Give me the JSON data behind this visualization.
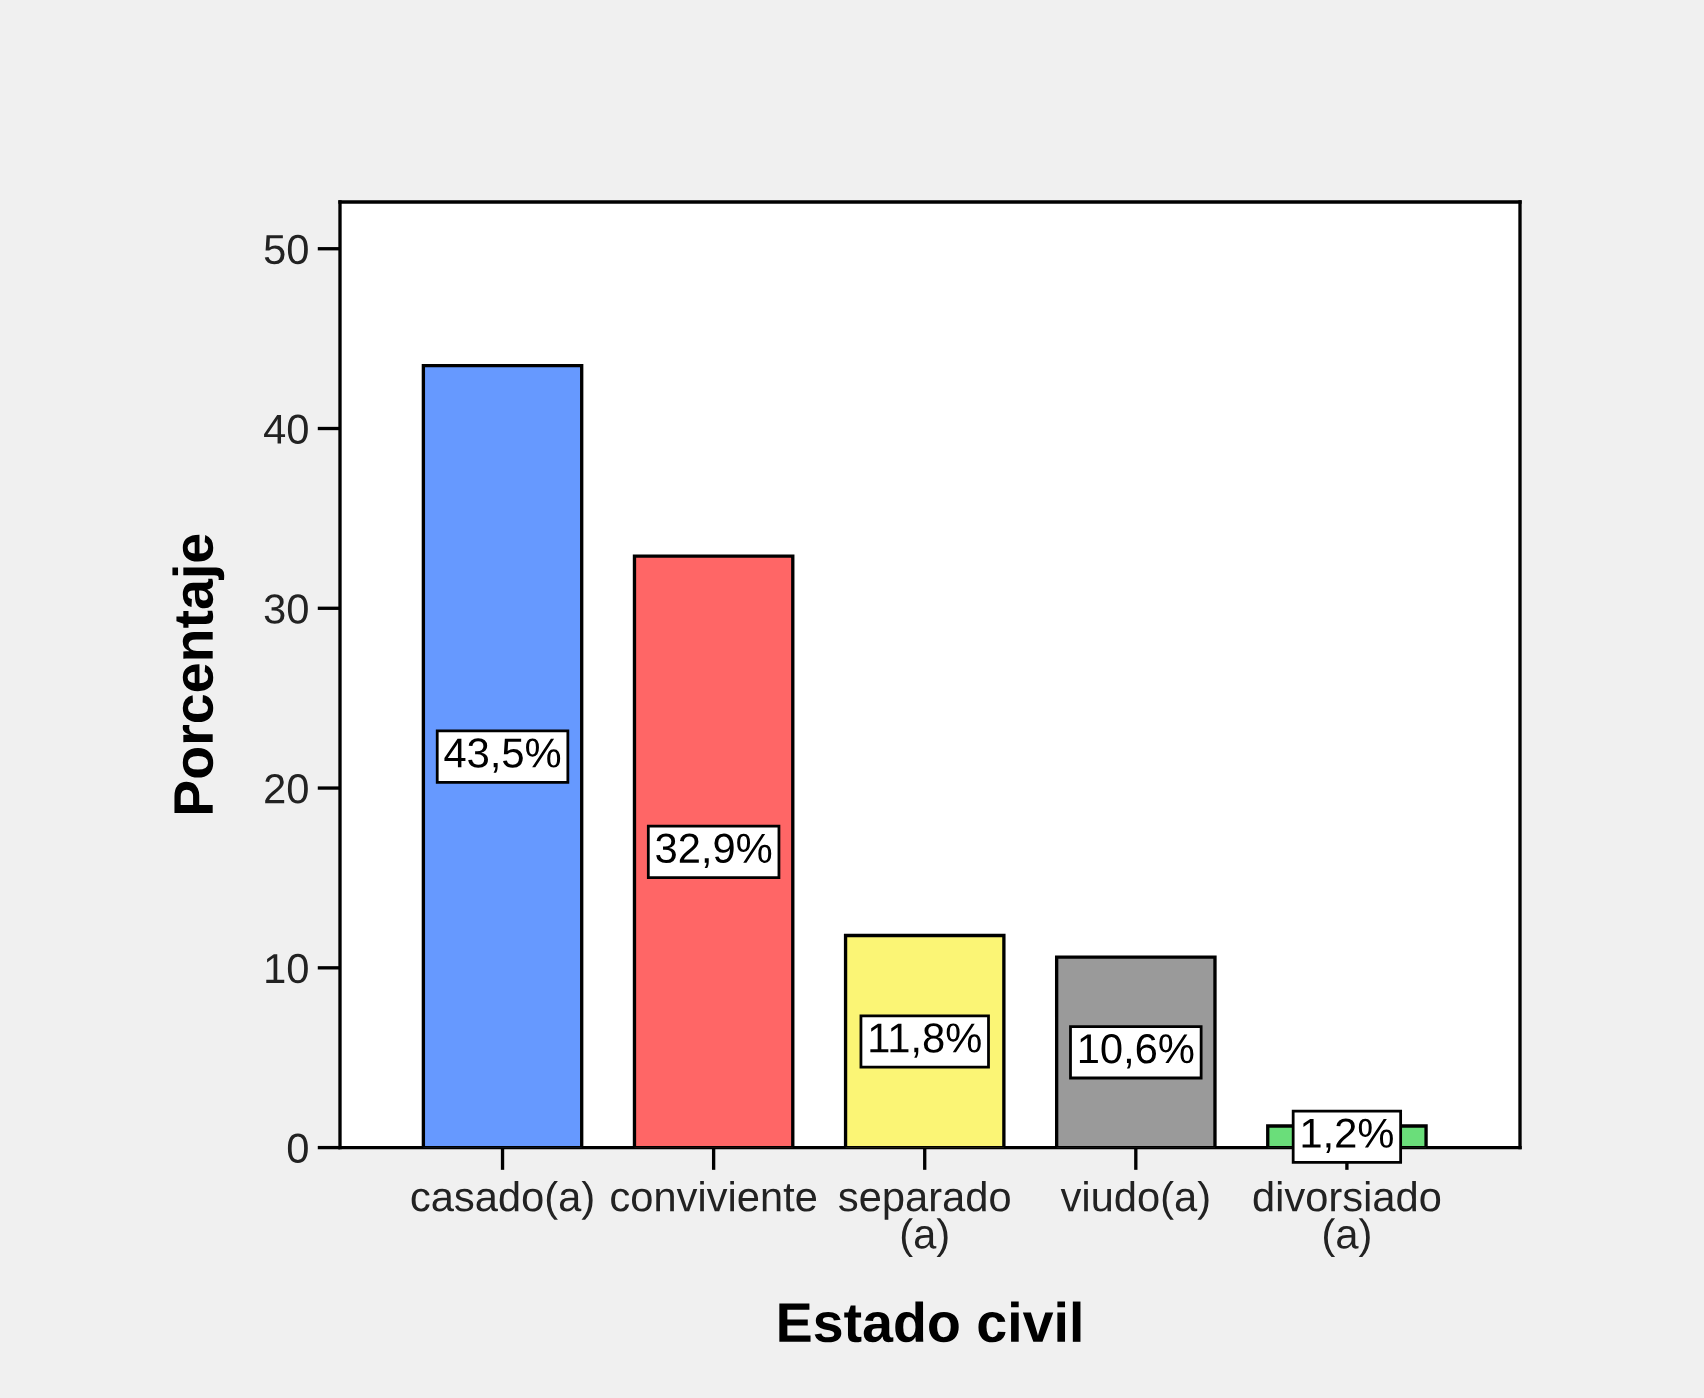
{
  "chart_data": {
    "type": "bar",
    "xlabel": "Estado civil",
    "ylabel": "Porcentaje",
    "categories": [
      "casado(a)",
      "conviviente",
      "separado\n(a)",
      "viudo(a)",
      "divorsiado\n(a)"
    ],
    "values": [
      43.5,
      32.9,
      11.8,
      10.6,
      1.2
    ],
    "colors": [
      "#6699ff",
      "#ff6666",
      "#fbf575",
      "#9a9a9a",
      "#6ade7a"
    ],
    "value_labels": [
      "43,5%",
      "32,9%",
      "11,8%",
      "10,6%",
      "1,2%"
    ],
    "ylim": [
      0,
      52.6
    ],
    "yticks": [
      0,
      10,
      20,
      30,
      40,
      50
    ],
    "grid": false,
    "legend": false
  }
}
